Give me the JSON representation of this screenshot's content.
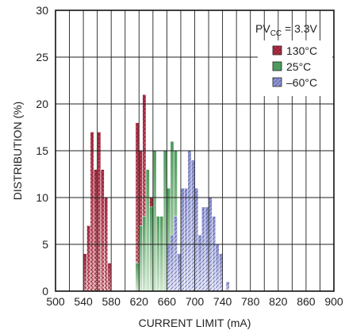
{
  "chart_data": {
    "type": "bar",
    "xlabel": "CURRENT LIMIT (mA)",
    "ylabel": "DISTRIBUTION (%)",
    "xlim": [
      500,
      900
    ],
    "ylim": [
      0,
      30
    ],
    "bin_width": 5,
    "x_ticks": [
      500,
      520,
      540,
      560,
      580,
      600,
      620,
      640,
      660,
      680,
      700,
      720,
      740,
      760,
      780,
      800,
      820,
      840,
      860,
      880,
      900
    ],
    "x_tick_labels": [
      "500",
      "",
      "540",
      "",
      "580",
      "",
      "620",
      "",
      "660",
      "",
      "700",
      "",
      "740",
      "",
      "780",
      "",
      "820",
      "",
      "860",
      "",
      "900"
    ],
    "y_ticks": [
      0,
      5,
      10,
      15,
      20,
      25,
      30
    ],
    "grid": true,
    "legend_position": "top-right",
    "annotation": {
      "base": "PV",
      "subscript": "CC",
      "rest": " = 3.3V"
    },
    "series": [
      {
        "name": "130°C",
        "color": "#b8304a",
        "light_color": "#f0a8ae",
        "hatch": "cross",
        "bins": [
          {
            "x0": 540,
            "value": 4
          },
          {
            "x0": 545,
            "value": 7
          },
          {
            "x0": 550,
            "value": 17
          },
          {
            "x0": 555,
            "value": 13
          },
          {
            "x0": 560,
            "value": 17
          },
          {
            "x0": 565,
            "value": 13
          },
          {
            "x0": 570,
            "value": 10
          },
          {
            "x0": 575,
            "value": 3
          },
          {
            "x0": 615,
            "value": 18
          },
          {
            "x0": 620,
            "value": 15
          },
          {
            "x0": 625,
            "value": 21
          },
          {
            "x0": 630,
            "value": 13
          },
          {
            "x0": 635,
            "value": 10
          }
        ]
      },
      {
        "name": "25°C",
        "color": "#4f9a5c",
        "light_color": "#cfe6cf",
        "hatch": "solid",
        "bins": [
          {
            "x0": 615,
            "value": 3
          },
          {
            "x0": 620,
            "value": 7
          },
          {
            "x0": 625,
            "value": 8
          },
          {
            "x0": 630,
            "value": 13
          },
          {
            "x0": 635,
            "value": 9
          },
          {
            "x0": 640,
            "value": 15
          },
          {
            "x0": 645,
            "value": 8
          },
          {
            "x0": 650,
            "value": 8
          },
          {
            "x0": 655,
            "value": 15
          },
          {
            "x0": 660,
            "value": 11
          },
          {
            "x0": 665,
            "value": 16
          },
          {
            "x0": 670,
            "value": 15
          }
        ]
      },
      {
        "name": "–60°C",
        "color": "#8f96d0",
        "light_color": "#dfe1f3",
        "hatch": "diag",
        "bins": [
          {
            "x0": 660,
            "value": 5
          },
          {
            "x0": 665,
            "value": 6
          },
          {
            "x0": 670,
            "value": 8
          },
          {
            "x0": 675,
            "value": 4
          },
          {
            "x0": 680,
            "value": 11
          },
          {
            "x0": 685,
            "value": 11
          },
          {
            "x0": 690,
            "value": 15
          },
          {
            "x0": 695,
            "value": 14
          },
          {
            "x0": 700,
            "value": 11
          },
          {
            "x0": 705,
            "value": 6
          },
          {
            "x0": 710,
            "value": 9
          },
          {
            "x0": 715,
            "value": 9
          },
          {
            "x0": 720,
            "value": 10
          },
          {
            "x0": 725,
            "value": 8
          },
          {
            "x0": 730,
            "value": 5
          },
          {
            "x0": 735,
            "value": 4
          },
          {
            "x0": 745,
            "value": 1
          }
        ]
      }
    ]
  }
}
